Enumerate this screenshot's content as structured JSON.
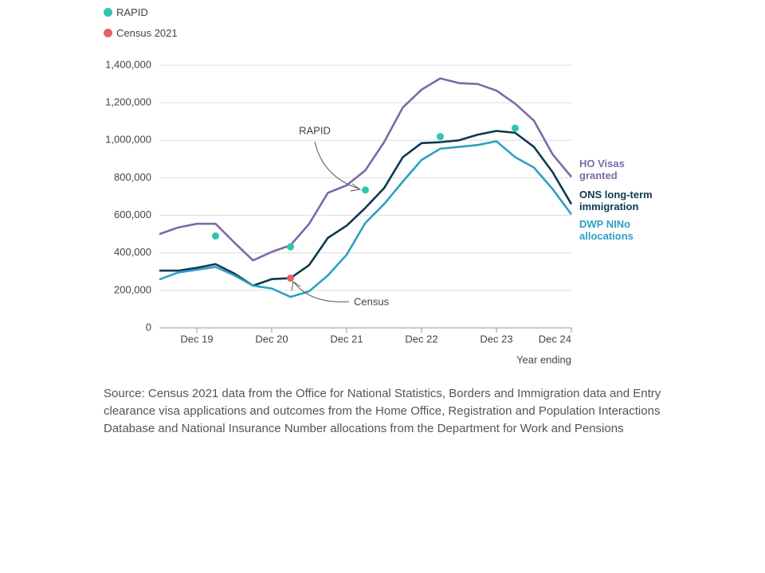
{
  "chart_data": {
    "type": "line",
    "categories": [
      null,
      null,
      "Dec 19",
      null,
      null,
      null,
      "Dec 20",
      null,
      null,
      null,
      "Dec 21",
      null,
      null,
      null,
      "Dec 22",
      null,
      null,
      null,
      "Dec 23",
      null,
      null,
      null,
      "Dec 24"
    ],
    "x_label": "Year ending",
    "series": [
      {
        "name": "HO Visas granted",
        "color": "#7b6aa8",
        "values": [
          500000,
          535000,
          555000,
          555000,
          455000,
          360000,
          405000,
          440000,
          555000,
          720000,
          760000,
          840000,
          990000,
          1175000,
          1270000,
          1330000,
          1305000,
          1300000,
          1265000,
          1195000,
          1105000,
          925000,
          805000
        ]
      },
      {
        "name": "ONS long-term immigration",
        "color": "#0c3a4f",
        "values": [
          305000,
          305000,
          320000,
          340000,
          290000,
          225000,
          260000,
          265000,
          335000,
          480000,
          545000,
          640000,
          745000,
          910000,
          985000,
          990000,
          1000000,
          1030000,
          1050000,
          1040000,
          965000,
          830000,
          660000
        ]
      },
      {
        "name": "DWP NINo allocations",
        "color": "#2e9fc4",
        "values": [
          258000,
          295000,
          310000,
          325000,
          280000,
          225000,
          210000,
          165000,
          195000,
          280000,
          390000,
          560000,
          660000,
          780000,
          895000,
          955000,
          965000,
          975000,
          995000,
          910000,
          855000,
          740000,
          605000
        ]
      }
    ],
    "points": [
      {
        "name": "RAPID",
        "color": "#2ec4b0",
        "values": [
          null,
          null,
          null,
          490000,
          null,
          null,
          null,
          432000,
          null,
          null,
          null,
          735000,
          null,
          null,
          null,
          1020000,
          null,
          null,
          null,
          1065000,
          null,
          null,
          null
        ]
      },
      {
        "name": "Census 2021",
        "color": "#e8606a",
        "values": [
          null,
          null,
          null,
          null,
          null,
          null,
          null,
          265000,
          null,
          null,
          null,
          null,
          null,
          null,
          null,
          null,
          null,
          null,
          null,
          null,
          null,
          null,
          null
        ]
      }
    ],
    "annotations": [
      "RAPID",
      "Census"
    ],
    "ylim": [
      0,
      1400000
    ],
    "yticks": [
      0,
      {
        "value": 200000,
        "label": "200,000"
      },
      {
        "value": 400000,
        "label": "400,000"
      },
      {
        "value": 600000,
        "label": "600,000"
      },
      {
        "value": 800000,
        "label": "800,000"
      },
      {
        "value": 1000000,
        "label": "1,000,000"
      },
      {
        "value": 1200000,
        "label": "1,200,000"
      },
      {
        "value": 1400000,
        "label": "1,400,000"
      }
    ],
    "grid": true
  },
  "source": "Source: Census 2021 data from the Office for National Statistics, Borders and Immigration data and Entry clearance visa applications and outcomes from the Home Office, Registration and Population Interactions Database and National Insurance Number allocations from the Department for Work and Pensions"
}
